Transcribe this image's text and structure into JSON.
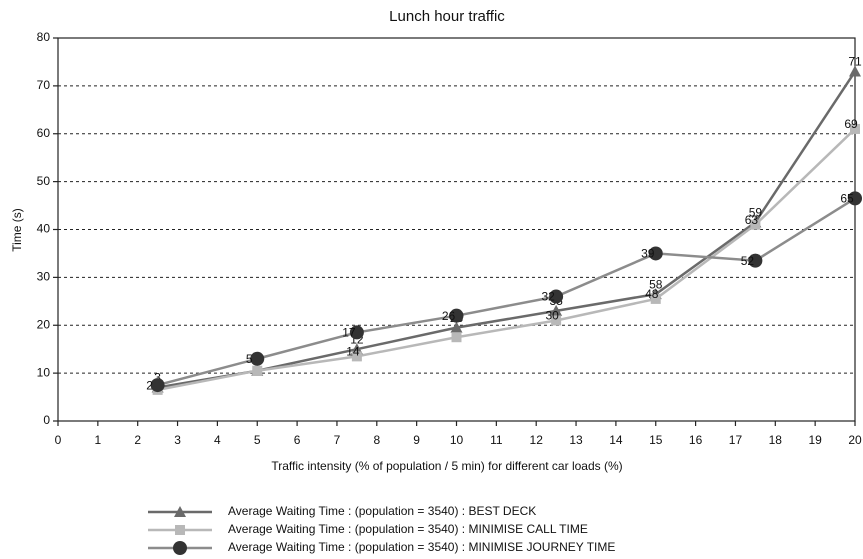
{
  "chart_data": {
    "type": "line",
    "title": "Lunch hour traffic",
    "xlabel": "Traffic intensity (% of population / 5 min) for different car loads (%)",
    "ylabel": "Time (s)",
    "x": [
      2.5,
      5,
      7.5,
      10,
      12.5,
      15,
      17.5,
      20
    ],
    "xlim": [
      0,
      20
    ],
    "xticks": [
      0,
      1,
      2,
      3,
      4,
      5,
      6,
      7,
      8,
      9,
      10,
      11,
      12,
      13,
      14,
      15,
      16,
      17,
      18,
      19,
      20
    ],
    "ylim": [
      0,
      80
    ],
    "yticks": [
      0,
      10,
      20,
      30,
      40,
      50,
      60,
      70,
      80
    ],
    "grid": true,
    "legend": "bottom",
    "series": [
      {
        "name": "Average Waiting Time : (population = 3540) : BEST DECK",
        "color": "#6a6a6a",
        "marker": "triangle",
        "values": [
          7,
          10.5,
          15,
          19.5,
          23,
          26.5,
          41.5,
          73
        ],
        "point_labels": [
          "3",
          null,
          "12",
          "23",
          "35",
          "58",
          "59",
          "71"
        ]
      },
      {
        "name": "Average Waiting Time : (population = 3540) : MINIMISE CALL TIME",
        "color": "#b8b8b8",
        "marker": "square",
        "values": [
          6.5,
          10.5,
          13.5,
          17.5,
          21,
          25.5,
          41,
          61
        ],
        "point_labels": [
          null,
          null,
          "14",
          null,
          "30",
          "48",
          "63",
          "69"
        ]
      },
      {
        "name": "Average Waiting Time : (population = 3540) : MINIMISE JOURNEY TIME",
        "color": "#8c8c8c",
        "marker": "circle",
        "values": [
          7.5,
          13,
          18.5,
          22,
          26,
          35,
          33.5,
          46.5
        ],
        "point_labels": [
          "2",
          "5",
          "17",
          "26",
          "32",
          "39",
          "52",
          "65"
        ]
      }
    ]
  }
}
